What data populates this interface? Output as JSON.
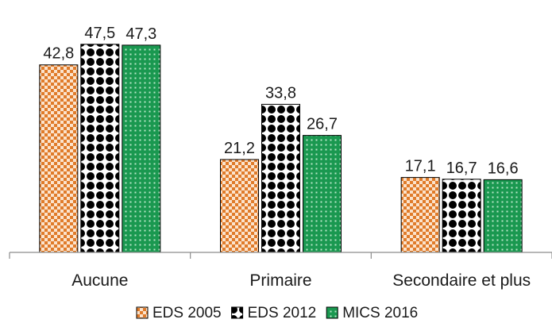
{
  "chart_data": {
    "type": "bar",
    "categories": [
      "Aucune",
      "Primaire",
      "Secondaire et plus"
    ],
    "series": [
      {
        "name": "EDS 2005",
        "values": [
          42.8,
          21.2,
          17.1
        ],
        "labels": [
          "42,8",
          "21,2",
          "17,1"
        ],
        "color": "#e07b2a",
        "pattern": "checker"
      },
      {
        "name": "EDS 2012",
        "values": [
          47.5,
          33.8,
          16.7
        ],
        "labels": [
          "47,5",
          "33,8",
          "16,7"
        ],
        "color": "#000000",
        "pattern": "dots"
      },
      {
        "name": "MICS 2016",
        "values": [
          47.3,
          26.7,
          16.6
        ],
        "labels": [
          "47,3",
          "26,7",
          "16,6"
        ],
        "color": "#1a9850",
        "pattern": "grid"
      }
    ],
    "ylim": [
      0,
      50
    ],
    "grid": false,
    "legend": "bottom",
    "data_labels": true
  }
}
